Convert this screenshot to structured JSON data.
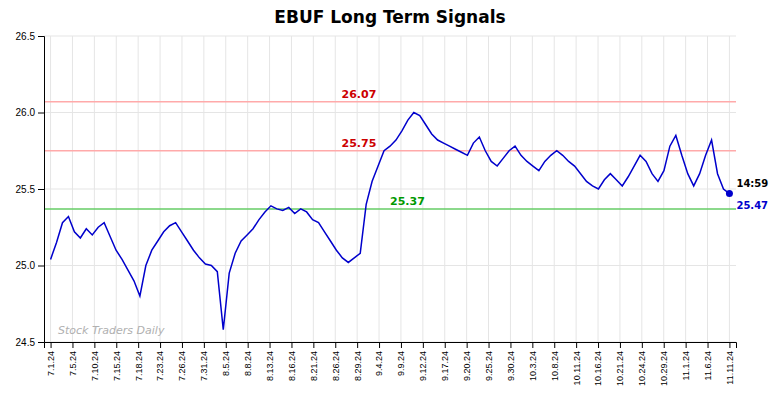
{
  "chart_data": {
    "type": "line",
    "title": "EBUF Long Term Signals",
    "grid": true,
    "xlim": [
      -0.3,
      31.3
    ],
    "xticks": [
      {
        "value": 0,
        "label": "7.1.24"
      },
      {
        "value": 1,
        "label": "7.5.24"
      },
      {
        "value": 2,
        "label": "7.10.24"
      },
      {
        "value": 3,
        "label": "7.15.24"
      },
      {
        "value": 4,
        "label": "7.18.24"
      },
      {
        "value": 5,
        "label": "7.23.24"
      },
      {
        "value": 6,
        "label": "7.26.24"
      },
      {
        "value": 7,
        "label": "7.31.24"
      },
      {
        "value": 8,
        "label": "8.5.24"
      },
      {
        "value": 9,
        "label": "8.8.24"
      },
      {
        "value": 10,
        "label": "8.13.24"
      },
      {
        "value": 11,
        "label": "8.16.24"
      },
      {
        "value": 12,
        "label": "8.21.24"
      },
      {
        "value": 13,
        "label": "8.26.24"
      },
      {
        "value": 14,
        "label": "8.29.24"
      },
      {
        "value": 15,
        "label": "9.4.24"
      },
      {
        "value": 16,
        "label": "9.9.24"
      },
      {
        "value": 17,
        "label": "9.12.24"
      },
      {
        "value": 18,
        "label": "9.17.24"
      },
      {
        "value": 19,
        "label": "9.20.24"
      },
      {
        "value": 20,
        "label": "9.25.24"
      },
      {
        "value": 21,
        "label": "9.30.24"
      },
      {
        "value": 22,
        "label": "10.3.24"
      },
      {
        "value": 23,
        "label": "10.8.24"
      },
      {
        "value": 24,
        "label": "10.11.24"
      },
      {
        "value": 25,
        "label": "10.16.24"
      },
      {
        "value": 26,
        "label": "10.21.24"
      },
      {
        "value": 27,
        "label": "10.24.24"
      },
      {
        "value": 28,
        "label": "10.29.24"
      },
      {
        "value": 29,
        "label": "11.1.24"
      },
      {
        "value": 30,
        "label": "11.6.24"
      },
      {
        "value": 31,
        "label": "11.11.24"
      }
    ],
    "ylim": [
      24.5,
      26.5
    ],
    "yticks": [
      24.5,
      {
        "value": 25,
        "label": "25.0"
      },
      25.5,
      {
        "value": 26,
        "label": "26.0"
      },
      26.5
    ],
    "x": [
      0,
      0.2719,
      0.5439,
      0.8158,
      1.0877,
      1.3596,
      1.6316,
      1.9035,
      2.1754,
      2.4474,
      2.7193,
      2.9912,
      3.2632,
      3.5351,
      3.807,
      4.0789,
      4.3509,
      4.6228,
      4.8947,
      5.1667,
      5.4386,
      5.7105,
      5.9825,
      6.2544,
      6.5263,
      6.7982,
      7.0702,
      7.3421,
      7.614,
      7.886,
      8.1579,
      8.4298,
      8.7018,
      8.9737,
      9.2456,
      9.5175,
      9.7895,
      10.0614,
      10.3333,
      10.6053,
      10.8772,
      11.1491,
      11.4211,
      11.693,
      11.9649,
      12.2368,
      12.5088,
      12.7807,
      13.0526,
      13.3246,
      13.5965,
      13.8684,
      14.1404,
      14.4123,
      14.6842,
      14.9561,
      15.2281,
      15.5,
      15.7719,
      16.0439,
      16.3158,
      16.5877,
      16.8596,
      17.1316,
      17.4035,
      17.6754,
      17.9474,
      18.2193,
      18.4912,
      18.7632,
      19.0351,
      19.307,
      19.5789,
      19.8509,
      20.1228,
      20.3947,
      20.6667,
      20.9386,
      21.2105,
      21.4825,
      21.7544,
      22.0263,
      22.2982,
      22.5702,
      22.8421,
      23.114,
      23.386,
      23.6579,
      23.9298,
      24.2018,
      24.4737,
      24.7456,
      25.0175,
      25.2895,
      25.5614,
      25.8333,
      26.1053,
      26.3772,
      26.6491,
      26.9211,
      27.193,
      27.4649,
      27.7368,
      28.0088,
      28.2807,
      28.5526,
      28.8246,
      29.0965,
      29.3684,
      29.6404,
      29.9123,
      30.1842,
      30.4561,
      30.7281,
      31
    ],
    "series": [
      {
        "color": "#0000cc",
        "values": [
          25.04,
          25.15,
          25.28,
          25.32,
          25.22,
          25.18,
          25.24,
          25.2,
          25.25,
          25.28,
          25.19,
          25.1,
          25.04,
          24.97,
          24.9,
          24.8,
          25.0,
          25.1,
          25.16,
          25.22,
          25.26,
          25.28,
          25.22,
          25.16,
          25.1,
          25.05,
          25.01,
          25.0,
          24.96,
          24.58,
          24.95,
          25.08,
          25.16,
          25.2,
          25.24,
          25.3,
          25.35,
          25.39,
          25.37,
          25.36,
          25.38,
          25.34,
          25.37,
          25.35,
          25.3,
          25.28,
          25.22,
          25.16,
          25.1,
          25.05,
          25.02,
          25.05,
          25.08,
          25.4,
          25.55,
          25.65,
          25.75,
          25.78,
          25.82,
          25.88,
          25.95,
          26.0,
          25.98,
          25.92,
          25.86,
          25.82,
          25.8,
          25.78,
          25.76,
          25.74,
          25.72,
          25.8,
          25.84,
          25.75,
          25.68,
          25.65,
          25.7,
          25.75,
          25.78,
          25.72,
          25.68,
          25.65,
          25.62,
          25.68,
          25.72,
          25.75,
          25.72,
          25.68,
          25.65,
          25.6,
          25.55,
          25.52,
          25.5,
          25.56,
          25.6,
          25.56,
          25.52,
          25.58,
          25.65,
          25.72,
          25.68,
          25.6,
          25.55,
          25.62,
          25.78,
          25.85,
          25.72,
          25.6,
          25.52,
          25.6,
          25.72,
          25.82,
          25.6,
          25.5,
          25.47
        ]
      }
    ],
    "reference_lines": [
      {
        "value": 26.07,
        "label": "26.07",
        "color": "#ffaaaa",
        "label_color": "#cc0000"
      },
      {
        "value": 25.75,
        "label": "25.75",
        "color": "#ffaaaa",
        "label_color": "#cc0000"
      },
      {
        "value": 25.37,
        "label": "25.37",
        "color": "#66cc66",
        "label_color": "#009900"
      }
    ],
    "last_point_labels": [
      {
        "text": "14:59",
        "color": "#000000"
      },
      {
        "text": "25.47",
        "color": "#0000cc"
      }
    ],
    "watermark": {
      "text": "Stock Traders Daily",
      "color": "#b0b0b0"
    }
  }
}
